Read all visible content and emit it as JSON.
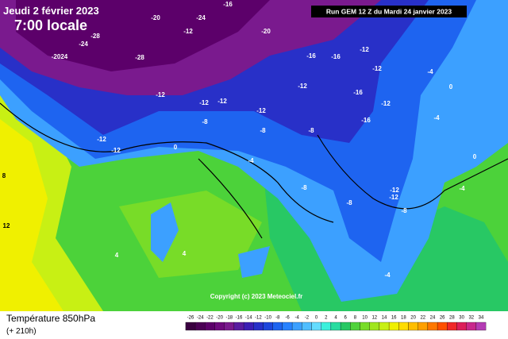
{
  "header": {
    "date": "Jeudi 2 février 2023",
    "time": "7:00 locale",
    "run": "Run GEM 12 Z du Mardi 24 janvier 2023"
  },
  "copyright": "Copyright (c) 2023 Meteociel.fr",
  "footer": {
    "title": "Température 850hPa",
    "lead": "(+ 210h)"
  },
  "map_labels": [
    "-20",
    "-24",
    "-16",
    "-28",
    "-24",
    "-2024",
    "-28",
    "-12",
    "-20",
    "-16",
    "-12",
    "-16",
    "-12",
    "-12",
    "-16",
    "-12",
    "-12",
    "-16",
    "-8",
    "-8",
    "-12",
    "-12",
    "-12",
    "-12",
    "-12",
    "-8",
    "-4",
    "-4",
    "0",
    "0",
    "-4",
    "-8",
    "-12",
    "-12",
    "-8",
    "-4",
    "-8",
    "0",
    "8",
    "12",
    "4",
    "4",
    "-4"
  ],
  "legend": {
    "values": [
      -26,
      -24,
      -22,
      -20,
      -18,
      -16,
      -14,
      -12,
      -10,
      -8,
      -6,
      -4,
      -2,
      0,
      2,
      4,
      6,
      8,
      10,
      12,
      14,
      16,
      18,
      20,
      22,
      24,
      26,
      28,
      30,
      32,
      34
    ],
    "colors": [
      "#3a0040",
      "#4b0055",
      "#5c006a",
      "#6e0a7e",
      "#7a1a8e",
      "#5a1ca0",
      "#3c1eb4",
      "#2830c8",
      "#1e46dc",
      "#1e64f0",
      "#2882ff",
      "#3ca0ff",
      "#50beff",
      "#64dcff",
      "#3cf0dc",
      "#28dca0",
      "#28c864",
      "#50d23c",
      "#78dc28",
      "#a0e61e",
      "#c8f014",
      "#f0f000",
      "#ffdc00",
      "#ffbe00",
      "#ffa000",
      "#ff7800",
      "#ff5000",
      "#f02828",
      "#dc1e5a",
      "#c8288c",
      "#b43cb4"
    ]
  }
}
